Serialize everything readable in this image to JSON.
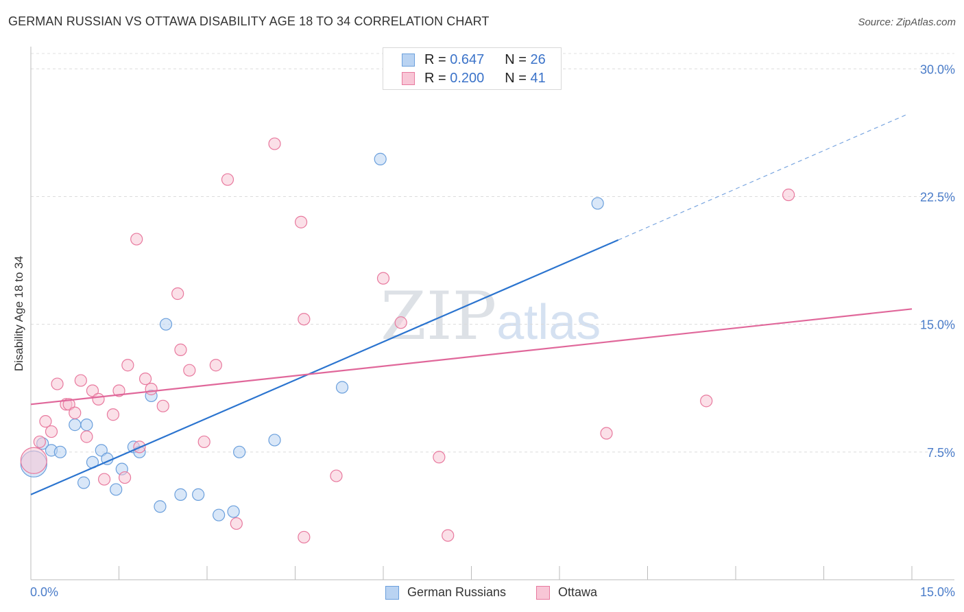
{
  "title": "GERMAN RUSSIAN VS OTTAWA DISABILITY AGE 18 TO 34 CORRELATION CHART",
  "source": "Source: ZipAtlas.com",
  "watermark": {
    "zip": "ZIP",
    "atlas": "atlas"
  },
  "chart_data": {
    "type": "scatter",
    "title": "GERMAN RUSSIAN VS OTTAWA DISABILITY AGE 18 TO 34 CORRELATION CHART",
    "xlabel": "",
    "ylabel": "Disability Age 18 to 34",
    "xlim": [
      0,
      15
    ],
    "ylim": [
      0,
      30.9
    ],
    "x_tick_labels": {
      "min": "0.0%",
      "max": "15.0%"
    },
    "y_ticks": [
      7.5,
      15.0,
      22.5,
      30.0
    ],
    "y_tick_labels": [
      "7.5%",
      "15.0%",
      "22.5%",
      "30.0%"
    ],
    "x_minor_ticks": [
      0,
      1.5,
      3,
      4.5,
      6,
      7.5,
      9,
      10.5,
      12,
      13.5,
      15
    ],
    "grid": true,
    "legend_position": "top-center",
    "series": [
      {
        "name": "German Russians",
        "color": "#6a9fdc",
        "fill": "#b9d3f2",
        "r": "0.647",
        "n": "26",
        "trend": {
          "x0": 0,
          "y0": 5.0,
          "x1": 10.0,
          "y1": 19.95,
          "dash_to_x": 14.9,
          "dash_to_y": 27.3
        },
        "points": [
          {
            "x": 0.05,
            "y": 6.8,
            "big": true
          },
          {
            "x": 0.2,
            "y": 8.0
          },
          {
            "x": 0.35,
            "y": 7.6
          },
          {
            "x": 0.5,
            "y": 7.5
          },
          {
            "x": 0.95,
            "y": 9.1
          },
          {
            "x": 0.75,
            "y": 9.1
          },
          {
            "x": 0.9,
            "y": 5.7
          },
          {
            "x": 1.05,
            "y": 6.9
          },
          {
            "x": 1.2,
            "y": 7.6
          },
          {
            "x": 1.3,
            "y": 7.1
          },
          {
            "x": 1.45,
            "y": 5.3
          },
          {
            "x": 1.55,
            "y": 6.5
          },
          {
            "x": 1.75,
            "y": 7.8
          },
          {
            "x": 1.85,
            "y": 7.5
          },
          {
            "x": 2.05,
            "y": 10.8
          },
          {
            "x": 2.2,
            "y": 4.3
          },
          {
            "x": 2.3,
            "y": 15.0
          },
          {
            "x": 2.55,
            "y": 5.0
          },
          {
            "x": 2.85,
            "y": 5.0
          },
          {
            "x": 3.2,
            "y": 3.8
          },
          {
            "x": 3.45,
            "y": 4.0
          },
          {
            "x": 3.55,
            "y": 7.5
          },
          {
            "x": 4.15,
            "y": 8.2
          },
          {
            "x": 5.3,
            "y": 11.3
          },
          {
            "x": 5.95,
            "y": 24.7
          },
          {
            "x": 9.65,
            "y": 22.1
          }
        ]
      },
      {
        "name": "Ottawa",
        "color": "#e8799e",
        "fill": "#f8c6d6",
        "r": "0.200",
        "n": "41",
        "trend": {
          "x0": 0,
          "y0": 10.3,
          "x1": 15.0,
          "y1": 15.9
        },
        "points": [
          {
            "x": 0.05,
            "y": 7.0,
            "big": true
          },
          {
            "x": 0.15,
            "y": 8.1
          },
          {
            "x": 0.25,
            "y": 9.3
          },
          {
            "x": 0.35,
            "y": 8.7
          },
          {
            "x": 0.45,
            "y": 11.5
          },
          {
            "x": 0.6,
            "y": 10.3
          },
          {
            "x": 0.65,
            "y": 10.3
          },
          {
            "x": 0.75,
            "y": 9.8
          },
          {
            "x": 0.85,
            "y": 11.7
          },
          {
            "x": 0.95,
            "y": 8.4
          },
          {
            "x": 1.05,
            "y": 11.1
          },
          {
            "x": 1.15,
            "y": 10.6
          },
          {
            "x": 1.25,
            "y": 5.9
          },
          {
            "x": 1.4,
            "y": 9.7
          },
          {
            "x": 1.5,
            "y": 11.1
          },
          {
            "x": 1.65,
            "y": 12.6
          },
          {
            "x": 1.6,
            "y": 6.0
          },
          {
            "x": 1.8,
            "y": 20.0
          },
          {
            "x": 1.85,
            "y": 7.8
          },
          {
            "x": 1.95,
            "y": 11.8
          },
          {
            "x": 2.05,
            "y": 11.2
          },
          {
            "x": 2.25,
            "y": 10.2
          },
          {
            "x": 2.5,
            "y": 16.8
          },
          {
            "x": 2.55,
            "y": 13.5
          },
          {
            "x": 2.7,
            "y": 12.3
          },
          {
            "x": 2.95,
            "y": 8.1
          },
          {
            "x": 3.15,
            "y": 12.6
          },
          {
            "x": 3.35,
            "y": 23.5
          },
          {
            "x": 3.5,
            "y": 3.3
          },
          {
            "x": 4.15,
            "y": 25.6
          },
          {
            "x": 4.65,
            "y": 15.3
          },
          {
            "x": 4.65,
            "y": 2.5
          },
          {
            "x": 4.6,
            "y": 21.0
          },
          {
            "x": 5.2,
            "y": 6.1
          },
          {
            "x": 6.0,
            "y": 17.7
          },
          {
            "x": 6.3,
            "y": 15.1
          },
          {
            "x": 6.95,
            "y": 7.2
          },
          {
            "x": 7.1,
            "y": 2.6
          },
          {
            "x": 9.8,
            "y": 8.6
          },
          {
            "x": 11.5,
            "y": 10.5
          },
          {
            "x": 12.9,
            "y": 22.6
          }
        ]
      }
    ]
  },
  "legend_top": {
    "rows": [
      {
        "r_label": "R =",
        "r_value": "0.647",
        "n_label": "N =",
        "n_value": "26"
      },
      {
        "r_label": "R =",
        "r_value": "0.200",
        "n_label": "N =",
        "n_value": "41"
      }
    ]
  },
  "legend_bottom": {
    "items": [
      "German Russians",
      "Ottawa"
    ]
  }
}
